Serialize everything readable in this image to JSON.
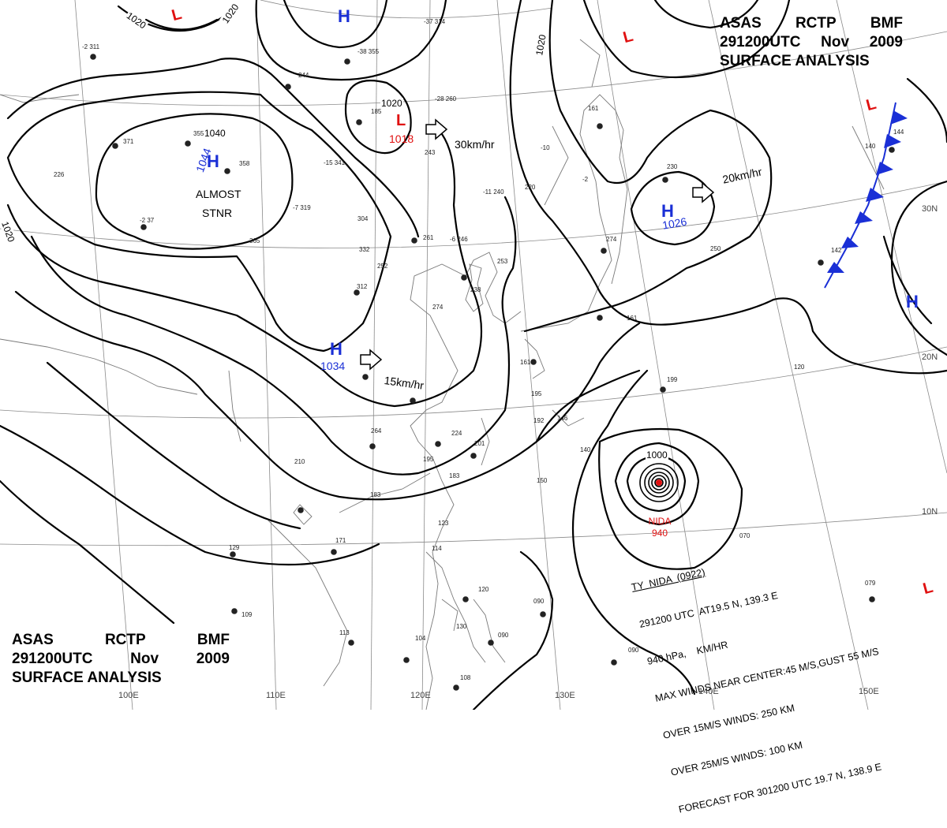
{
  "header": {
    "agency": "ASAS",
    "office": "RCTP",
    "source": "BMF",
    "datetime": "291200UTC",
    "month": "Nov",
    "year": "2009",
    "product": "SURFACE ANALYSIS"
  },
  "pressure_systems": {
    "high_siberia": {
      "symbol": "H",
      "pressure": "1044",
      "motion": "ALMOST",
      "motion2": "STNR"
    },
    "high_east_china": {
      "symbol": "H",
      "pressure": "1034",
      "speed": "15km/hr"
    },
    "high_japan": {
      "symbol": "H",
      "pressure": "1026",
      "speed": "20km/hr"
    },
    "low_mongolia": {
      "symbol": "L",
      "pressure": "1018",
      "speed": "30km/hr"
    },
    "high_north": {
      "symbol": "H"
    },
    "high_east": {
      "symbol": "H"
    },
    "low_top": {
      "symbol": "L"
    },
    "low_northeast": {
      "symbol": "L"
    },
    "low_front": {
      "symbol": "L"
    },
    "low_southeast": {
      "symbol": "L"
    }
  },
  "isobar_labels": {
    "top_left_a": "1020",
    "top_left_b": "1020",
    "west_left": "1020",
    "siberia_center": "1040",
    "mongolia": "1020",
    "north_center": "1020",
    "typhoon_ring": "1000"
  },
  "typhoon": {
    "name": "NIDA",
    "center_pressure": "940",
    "lines": [
      "TY  NIDA  (0922)",
      "291200 UTC  AT19.5 N, 139.3 E",
      "940 hPa,    KM/HR",
      "MAX WINDS NEAR CENTER:45 M/S,GUST 55 M/S",
      "OVER 15M/S WINDS: 250 KM",
      "OVER 25M/S WINDS: 100 KM",
      "FORECAST FOR 301200 UTC 19.7 N, 138.9 E"
    ]
  },
  "graticule": {
    "longitudes": [
      "100E",
      "110E",
      "120E",
      "130E",
      "140E",
      "150E"
    ],
    "latitudes": [
      "10N",
      "20N",
      "30N"
    ]
  },
  "colors": {
    "high": "#1a2fd6",
    "low": "#e01010",
    "front": "#1a2fd6",
    "isobar": "#000000",
    "grid": "#888888"
  }
}
